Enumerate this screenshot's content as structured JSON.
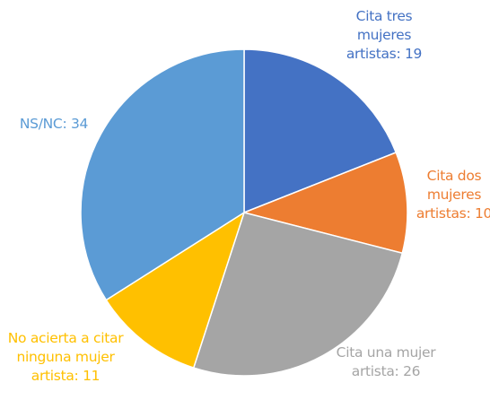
{
  "chart_data": {
    "type": "pie",
    "values": [
      19,
      10,
      26,
      11,
      34
    ],
    "value_labels": [
      "Cita tres mujeres artistas: 19",
      "Cita dos mujeres artistas: 10",
      "Cita una mujer artista: 26",
      "No acierta a citar ninguna mujer artista: 11",
      "NS/NC: 34"
    ],
    "colors": [
      "#4472c4",
      "#ed7d31",
      "#a5a5a5",
      "#ffc000",
      "#5b9bd5"
    ]
  }
}
